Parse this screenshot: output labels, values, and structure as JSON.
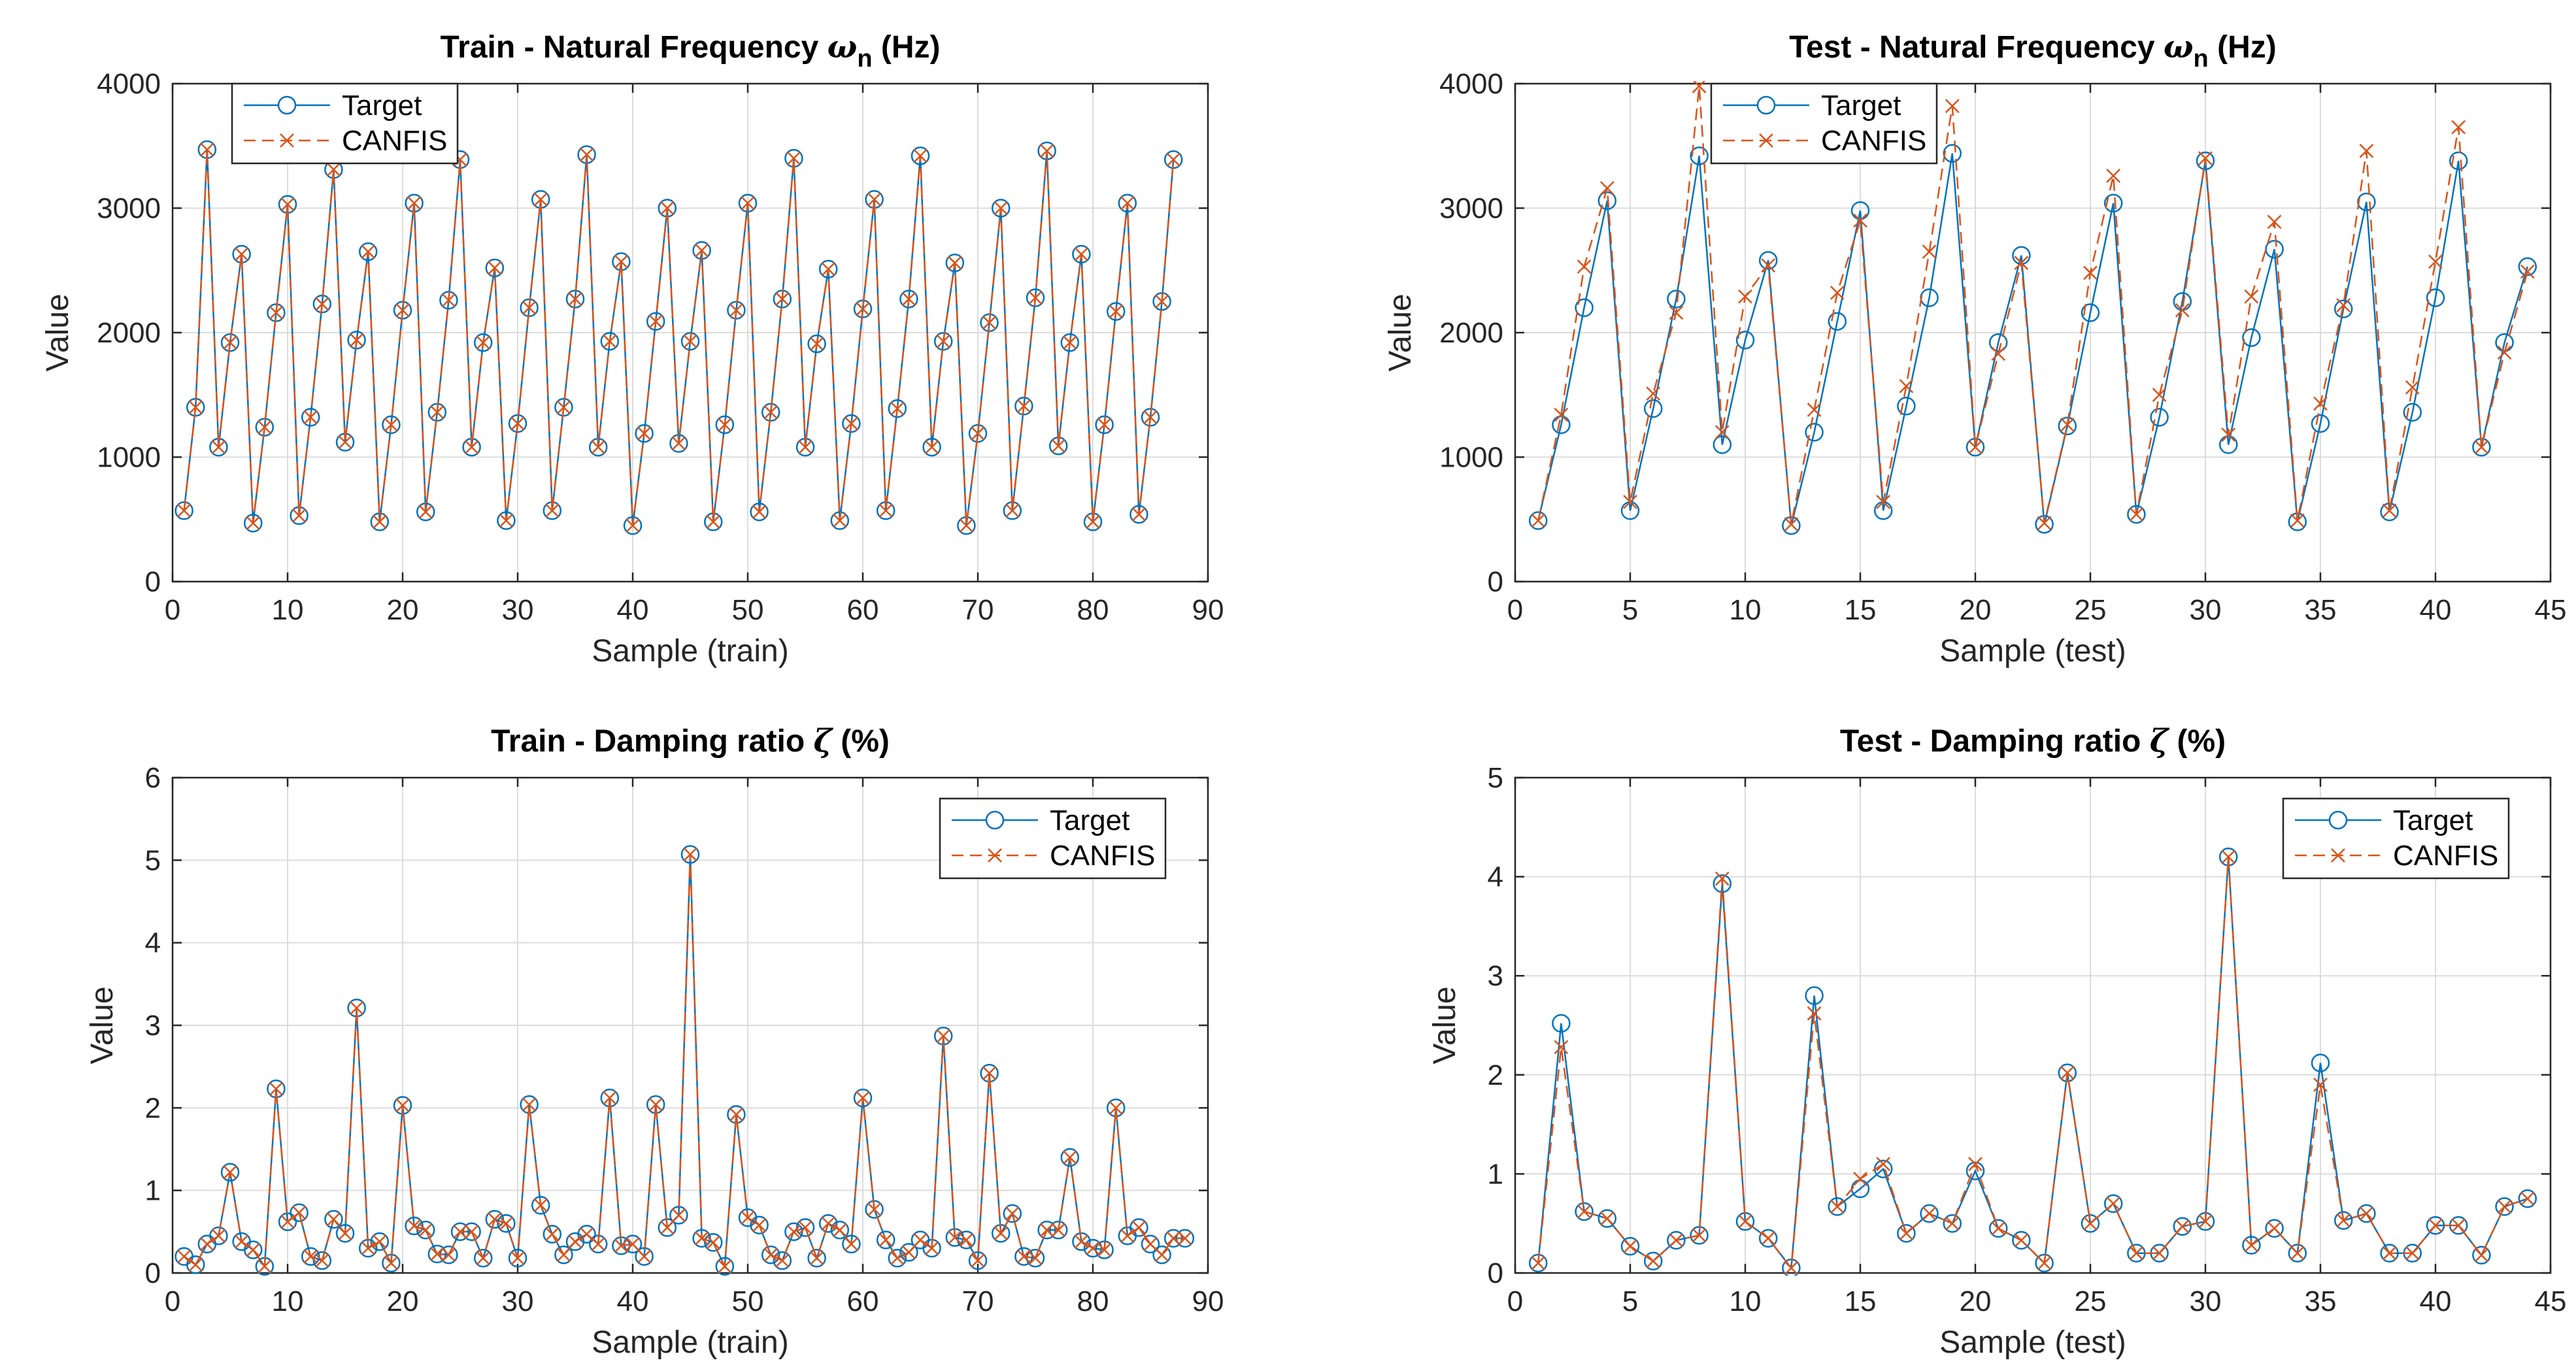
{
  "colors": {
    "target": "#0072BD",
    "canfis": "#D95319",
    "axis": "#262626",
    "grid": "#dcdcdc",
    "legend_border": "#262626"
  },
  "chart_data": [
    {
      "type": "line",
      "title": "Train - Natural Frequency ω_n (Hz)",
      "title_main": "Train - Natural Frequency",
      "title_symbol": "ω",
      "title_sub": "n",
      "title_tail": "(Hz)",
      "xlabel": "Sample (train)",
      "ylabel": "Value",
      "xlim": [
        0,
        90
      ],
      "ylim": [
        0,
        4000
      ],
      "xticks": [
        0,
        10,
        20,
        30,
        40,
        50,
        60,
        70,
        80,
        90
      ],
      "yticks": [
        0,
        1000,
        2000,
        3000,
        4000
      ],
      "grid": true,
      "legend": "top-left",
      "series": [
        {
          "name": "Target",
          "marker": "circle",
          "line": "solid",
          "values": [
            570,
            1400,
            3470,
            1080,
            1920,
            2630,
            470,
            1240,
            2160,
            3030,
            530,
            1320,
            2230,
            3310,
            1120,
            1940,
            2650,
            480,
            1260,
            2180,
            3040,
            560,
            1360,
            2260,
            3390,
            1080,
            1920,
            2520,
            490,
            1270,
            2200,
            3070,
            570,
            1400,
            2270,
            3430,
            1080,
            1930,
            2570,
            450,
            1190,
            2090,
            3000,
            1110,
            1930,
            2660,
            480,
            1260,
            2180,
            3040,
            560,
            1360,
            2270,
            3400,
            1080,
            1910,
            2510,
            490,
            1270,
            2190,
            3070,
            570,
            1390,
            2270,
            3420,
            1080,
            1930,
            2560,
            450,
            1190,
            2080,
            3000,
            570,
            1410,
            2280,
            3460,
            1090,
            1920,
            2630,
            480,
            1260,
            2170,
            3040,
            540,
            1320,
            2250,
            3390
          ]
        },
        {
          "name": "CANFIS",
          "marker": "x",
          "line": "dashed",
          "values": [
            570,
            1400,
            3470,
            1080,
            1920,
            2630,
            470,
            1240,
            2160,
            3030,
            530,
            1320,
            2230,
            3310,
            1120,
            1940,
            2650,
            480,
            1260,
            2180,
            3040,
            560,
            1360,
            2260,
            3390,
            1080,
            1920,
            2520,
            490,
            1270,
            2200,
            3070,
            570,
            1400,
            2270,
            3430,
            1080,
            1930,
            2570,
            450,
            1190,
            2090,
            3000,
            1110,
            1930,
            2660,
            480,
            1260,
            2180,
            3040,
            560,
            1360,
            2270,
            3400,
            1080,
            1910,
            2510,
            490,
            1270,
            2190,
            3070,
            570,
            1390,
            2270,
            3420,
            1080,
            1930,
            2560,
            450,
            1190,
            2080,
            3000,
            570,
            1410,
            2280,
            3460,
            1090,
            1920,
            2630,
            480,
            1260,
            2170,
            3040,
            540,
            1320,
            2250,
            3390
          ]
        }
      ]
    },
    {
      "type": "line",
      "title": "Test - Natural Frequency ω_n (Hz)",
      "title_main": "Test - Natural Frequency",
      "title_symbol": "ω",
      "title_sub": "n",
      "title_tail": "(Hz)",
      "xlabel": "Sample (test)",
      "ylabel": "Value",
      "xlim": [
        0,
        45
      ],
      "ylim": [
        0,
        4000
      ],
      "xticks": [
        0,
        5,
        10,
        15,
        20,
        25,
        30,
        35,
        40,
        45
      ],
      "yticks": [
        0,
        1000,
        2000,
        3000,
        4000
      ],
      "grid": true,
      "legend": "top-left",
      "series": [
        {
          "name": "Target",
          "marker": "circle",
          "line": "solid",
          "values": [
            490,
            1260,
            2200,
            3060,
            570,
            1390,
            2270,
            3420,
            1100,
            1940,
            2580,
            450,
            1200,
            2090,
            2980,
            570,
            1410,
            2280,
            3440,
            1080,
            1920,
            2620,
            460,
            1250,
            2160,
            3040,
            540,
            1320,
            2250,
            3380,
            1100,
            1960,
            2670,
            480,
            1270,
            2190,
            3050,
            560,
            1360,
            2280,
            3380,
            1080,
            1920,
            2530
          ]
        },
        {
          "name": "CANFIS",
          "marker": "x",
          "line": "dashed",
          "values": [
            490,
            1340,
            2530,
            3160,
            640,
            1510,
            2160,
            3980,
            1200,
            2290,
            2540,
            460,
            1380,
            2320,
            2900,
            640,
            1570,
            2650,
            3820,
            1080,
            1830,
            2560,
            470,
            1260,
            2480,
            3260,
            540,
            1500,
            2180,
            3400,
            1180,
            2290,
            2890,
            490,
            1430,
            2220,
            3460,
            570,
            1560,
            2570,
            3650,
            1080,
            1840,
            2490
          ]
        }
      ]
    },
    {
      "type": "line",
      "title": "Train - Damping ratio ζ (%)",
      "title_main": "Train - Damping ratio",
      "title_symbol": "ζ",
      "title_sub": "",
      "title_tail": "(%)",
      "xlabel": "Sample (train)",
      "ylabel": "Value",
      "xlim": [
        0,
        90
      ],
      "ylim": [
        0,
        6
      ],
      "xticks": [
        0,
        10,
        20,
        30,
        40,
        50,
        60,
        70,
        80,
        90
      ],
      "yticks": [
        0,
        1,
        2,
        3,
        4,
        5,
        6
      ],
      "grid": true,
      "legend": "top-right",
      "series": [
        {
          "name": "Target",
          "marker": "circle",
          "line": "solid",
          "values": [
            0.2,
            0.1,
            0.35,
            0.45,
            1.22,
            0.38,
            0.28,
            0.08,
            2.23,
            0.62,
            0.73,
            0.2,
            0.15,
            0.65,
            0.48,
            3.21,
            0.3,
            0.38,
            0.12,
            2.03,
            0.57,
            0.52,
            0.23,
            0.22,
            0.5,
            0.5,
            0.18,
            0.65,
            0.6,
            0.18,
            2.04,
            0.82,
            0.47,
            0.22,
            0.38,
            0.47,
            0.35,
            2.12,
            0.33,
            0.35,
            0.2,
            2.04,
            0.55,
            0.7,
            5.07,
            0.42,
            0.37,
            0.08,
            1.92,
            0.67,
            0.58,
            0.22,
            0.15,
            0.5,
            0.55,
            0.18,
            0.6,
            0.52,
            0.35,
            2.12,
            0.77,
            0.4,
            0.18,
            0.25,
            0.4,
            0.3,
            2.87,
            0.43,
            0.4,
            0.15,
            2.42,
            0.48,
            0.72,
            0.2,
            0.18,
            0.52,
            0.52,
            1.4,
            0.38,
            0.3,
            0.28,
            2.0,
            0.45,
            0.55,
            0.35,
            0.22,
            0.42,
            0.42
          ]
        },
        {
          "name": "CANFIS",
          "marker": "x",
          "line": "dashed",
          "values": [
            0.2,
            0.1,
            0.35,
            0.45,
            1.22,
            0.38,
            0.28,
            0.08,
            2.23,
            0.62,
            0.73,
            0.2,
            0.15,
            0.65,
            0.48,
            3.21,
            0.3,
            0.38,
            0.12,
            2.03,
            0.57,
            0.52,
            0.23,
            0.22,
            0.5,
            0.5,
            0.18,
            0.65,
            0.6,
            0.18,
            2.04,
            0.82,
            0.47,
            0.22,
            0.38,
            0.47,
            0.35,
            2.12,
            0.33,
            0.35,
            0.2,
            2.04,
            0.55,
            0.7,
            5.07,
            0.42,
            0.37,
            0.08,
            1.92,
            0.67,
            0.58,
            0.22,
            0.15,
            0.5,
            0.55,
            0.18,
            0.6,
            0.52,
            0.35,
            2.12,
            0.77,
            0.4,
            0.18,
            0.25,
            0.4,
            0.3,
            2.87,
            0.43,
            0.4,
            0.15,
            2.42,
            0.48,
            0.72,
            0.2,
            0.18,
            0.52,
            0.52,
            1.4,
            0.38,
            0.3,
            0.28,
            2.0,
            0.45,
            0.55,
            0.35,
            0.22,
            0.42,
            0.42
          ]
        }
      ]
    },
    {
      "type": "line",
      "title": "Test - Damping ratio ζ (%)",
      "title_main": "Test - Damping ratio",
      "title_symbol": "ζ",
      "title_sub": "",
      "title_tail": "(%)",
      "xlabel": "Sample (test)",
      "ylabel": "Value",
      "xlim": [
        0,
        45
      ],
      "ylim": [
        0,
        5
      ],
      "xticks": [
        0,
        5,
        10,
        15,
        20,
        25,
        30,
        35,
        40,
        45
      ],
      "yticks": [
        0,
        1,
        2,
        3,
        4,
        5
      ],
      "grid": true,
      "legend": "top-right",
      "series": [
        {
          "name": "Target",
          "marker": "circle",
          "line": "solid",
          "values": [
            0.1,
            2.52,
            0.62,
            0.55,
            0.27,
            0.12,
            0.33,
            0.38,
            3.93,
            0.52,
            0.35,
            0.05,
            2.8,
            0.67,
            0.85,
            1.05,
            0.4,
            0.6,
            0.5,
            1.03,
            0.45,
            0.33,
            0.1,
            2.02,
            0.5,
            0.7,
            0.2,
            0.2,
            0.47,
            0.52,
            4.2,
            0.28,
            0.45,
            0.2,
            2.12,
            0.53,
            0.6,
            0.2,
            0.2,
            0.48,
            0.48,
            0.18,
            0.67,
            0.75
          ]
        },
        {
          "name": "CANFIS",
          "marker": "x",
          "line": "dashed",
          "values": [
            0.1,
            2.28,
            0.62,
            0.55,
            0.27,
            0.12,
            0.33,
            0.38,
            3.98,
            0.52,
            0.35,
            0.05,
            2.62,
            0.67,
            0.95,
            1.1,
            0.4,
            0.6,
            0.5,
            1.1,
            0.45,
            0.33,
            0.1,
            2.02,
            0.5,
            0.7,
            0.2,
            0.2,
            0.47,
            0.52,
            4.2,
            0.28,
            0.45,
            0.2,
            1.9,
            0.53,
            0.6,
            0.2,
            0.2,
            0.48,
            0.48,
            0.18,
            0.67,
            0.75
          ]
        }
      ]
    }
  ]
}
